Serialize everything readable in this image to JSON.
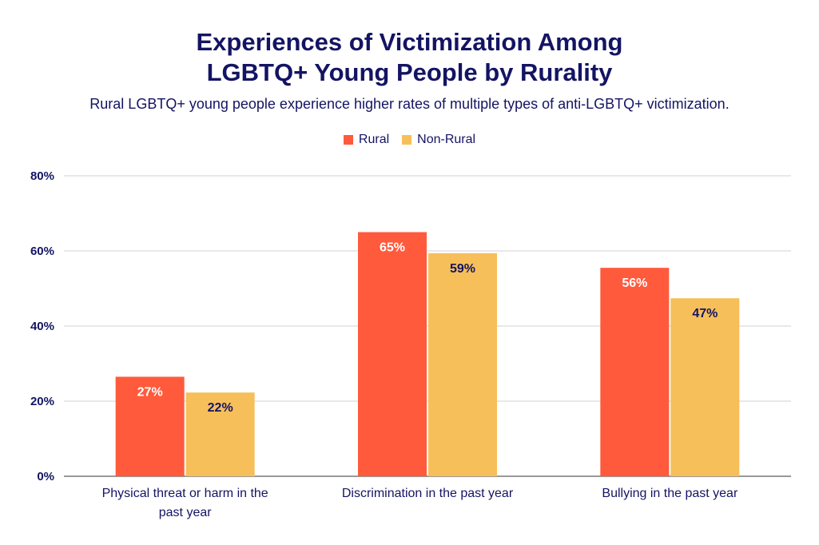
{
  "chart_data": {
    "type": "bar",
    "title_lines": [
      "Experiences of Victimization Among",
      "LGBTQ+ Young People by Rurality"
    ],
    "subtitle": "Rural LGBTQ+ young people experience higher rates of multiple types of anti-LGBTQ+ victimization.",
    "categories": [
      [
        "Physical threat or harm in the",
        "past year"
      ],
      [
        "Discrimination in the past year"
      ],
      [
        "Bullying in the past year"
      ]
    ],
    "series": [
      {
        "name": "Rural",
        "color": "#ff5a3c",
        "label_color": "#ffffff",
        "values": [
          26.5,
          65,
          55.5
        ],
        "labels": [
          "27%",
          "65%",
          "56%"
        ]
      },
      {
        "name": "Non-Rural",
        "color": "#f7bf5a",
        "label_color": "#141464",
        "values": [
          22.3,
          59.4,
          47.4
        ],
        "labels": [
          "22%",
          "59%",
          "47%"
        ]
      }
    ],
    "ylim": [
      0,
      80
    ],
    "yticks": [
      0,
      20,
      40,
      60,
      80
    ],
    "ytick_labels": [
      "0%",
      "20%",
      "40%",
      "60%",
      "80%"
    ],
    "grid": true,
    "legend_position": "top-center"
  }
}
